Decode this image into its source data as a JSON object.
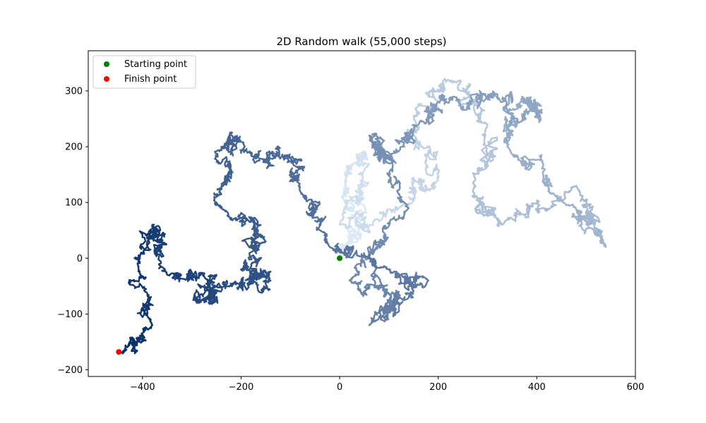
{
  "chart_data": {
    "type": "scatter",
    "title": "2D Random walk (55,000 steps)",
    "xlabel": "",
    "ylabel": "",
    "xlim": [
      -510,
      600
    ],
    "ylim": [
      -212,
      372
    ],
    "xticks": [
      -400,
      -200,
      0,
      200,
      400,
      600
    ],
    "yticks": [
      -200,
      -100,
      0,
      100,
      200,
      300
    ],
    "xtick_labels": [
      "−400",
      "−200",
      "0",
      "200",
      "400",
      "600"
    ],
    "ytick_labels": [
      "−200",
      "−100",
      "0",
      "100",
      "200",
      "300"
    ],
    "grid": false,
    "colormap": "Blues",
    "legend_position": "top-left",
    "walk_path": {
      "steps": 55000,
      "color_by": "step index (light to dark)",
      "approx_waypoints": [
        [
          0,
          0
        ],
        [
          40,
          50
        ],
        [
          10,
          150
        ],
        [
          60,
          170
        ],
        [
          0,
          60
        ],
        [
          120,
          90
        ],
        [
          200,
          140
        ],
        [
          150,
          250
        ],
        [
          220,
          320
        ],
        [
          300,
          240
        ],
        [
          270,
          120
        ],
        [
          330,
          60
        ],
        [
          480,
          130
        ],
        [
          540,
          20
        ],
        [
          440,
          110
        ],
        [
          340,
          200
        ],
        [
          370,
          290
        ],
        [
          410,
          260
        ],
        [
          330,
          280
        ],
        [
          230,
          290
        ],
        [
          160,
          240
        ],
        [
          90,
          170
        ],
        [
          60,
          220
        ],
        [
          140,
          90
        ],
        [
          20,
          -40
        ],
        [
          120,
          -60
        ],
        [
          60,
          -120
        ],
        [
          180,
          -40
        ],
        [
          100,
          -20
        ],
        [
          -20,
          20
        ],
        [
          -80,
          120
        ],
        [
          -100,
          180
        ],
        [
          -180,
          190
        ],
        [
          -240,
          200
        ],
        [
          -240,
          90
        ],
        [
          -150,
          30
        ],
        [
          -200,
          -20
        ],
        [
          -140,
          -40
        ],
        [
          -230,
          -50
        ],
        [
          -290,
          -80
        ],
        [
          -250,
          -30
        ],
        [
          -350,
          -30
        ],
        [
          -380,
          60
        ],
        [
          -410,
          -10
        ],
        [
          -380,
          -120
        ],
        [
          -450,
          -168
        ]
      ]
    },
    "series": [
      {
        "name": "Starting point",
        "x": [
          0
        ],
        "y": [
          0
        ],
        "color": "#008000"
      },
      {
        "name": "Finish point",
        "x": [
          -448
        ],
        "y": [
          -168
        ],
        "color": "#ff0000"
      }
    ]
  }
}
